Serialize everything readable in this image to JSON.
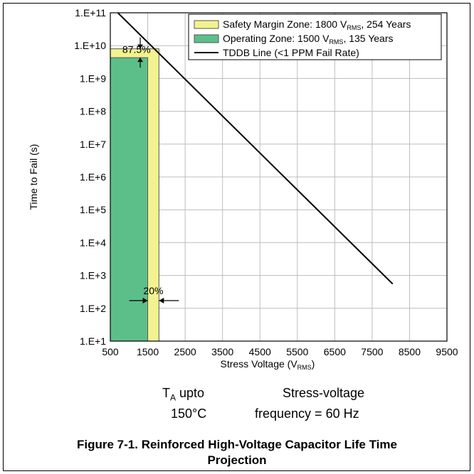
{
  "chart_data": {
    "type": "area",
    "title": "",
    "xlabel": "Stress Voltage (V",
    "xlabel_sub": "RMS",
    "xlabel_tail": ")",
    "ylabel": "Time to Fail (s)",
    "xlim": [
      500,
      9500
    ],
    "ylim": [
      10,
      100000000000
    ],
    "yscale": "log",
    "x_ticks": [
      500,
      1500,
      2500,
      3500,
      4500,
      5500,
      6500,
      7500,
      8500,
      9500
    ],
    "x_tick_labels": [
      "500",
      "1500",
      "2500",
      "3500",
      "4500",
      "5500",
      "6500",
      "7500",
      "8500",
      "9500"
    ],
    "y_ticks": [
      10,
      100,
      1000,
      10000,
      100000,
      1000000,
      10000000,
      100000000,
      1000000000,
      10000000000,
      100000000000
    ],
    "y_tick_labels": [
      "1.E+1",
      "1.E+2",
      "1.E+3",
      "1.E+4",
      "1.E+5",
      "1.E+6",
      "1.E+7",
      "1.E+8",
      "1.E+9",
      "1.E+10",
      "1.E+11"
    ],
    "grid": true,
    "legend_position": "top-right",
    "series": [
      {
        "name": "Safety Margin Zone: 1800 V",
        "name_sub": "RMS",
        "name_tail": ", 254 Years",
        "kind": "zone",
        "x": [
          500,
          1800
        ],
        "y_top": 8000000000,
        "color": "#f3f28f"
      },
      {
        "name": "Operating Zone: 1500 V",
        "name_sub": "RMS",
        "name_tail": ", 135 Years",
        "kind": "zone",
        "x": [
          500,
          1500
        ],
        "y_top": 4300000000,
        "color": "#5cbf8a"
      },
      {
        "name": "TDDB Line (<1 PPM Fail Rate)",
        "kind": "line",
        "x": [
          700,
          8050
        ],
        "y": [
          100000000000,
          550
        ],
        "color": "#000000"
      }
    ],
    "annotations": [
      {
        "text": "87.5%",
        "x": 1200,
        "y": 7000000000
      },
      {
        "text": "20%",
        "x": 1650,
        "y": 300
      }
    ]
  },
  "conditions": {
    "ta_label": "T",
    "ta_sub": "A",
    "ta_tail": " upto",
    "ta_value": "150°C",
    "sv_label": "Stress-voltage",
    "sv_value": "frequency = 60 Hz"
  },
  "caption": {
    "line1": "Figure 7-1. Reinforced High-Voltage Capacitor Life Time",
    "line2": "Projection"
  }
}
